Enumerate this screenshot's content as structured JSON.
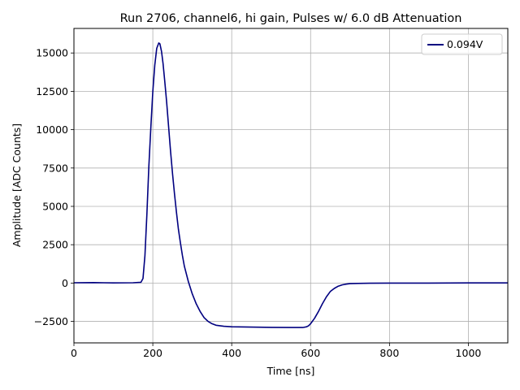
{
  "chart_data": {
    "type": "line",
    "title": "Run 2706, channel6, hi gain, Pulses w/ 6.0 dB Attenuation",
    "xlabel": "Time [ns]",
    "ylabel": "Amplitude [ADC Counts]",
    "xlim": [
      0,
      1100
    ],
    "ylim": [
      -3900,
      16600
    ],
    "xticks": [
      0,
      200,
      400,
      600,
      800,
      1000
    ],
    "yticks": [
      -2500,
      0,
      2500,
      5000,
      7500,
      10000,
      12500,
      15000
    ],
    "xtick_labels": [
      "0",
      "200",
      "400",
      "600",
      "800",
      "1000"
    ],
    "ytick_labels": [
      "−2500",
      "0",
      "2500",
      "5000",
      "7500",
      "10000",
      "12500",
      "15000"
    ],
    "grid": true,
    "legend": {
      "placement": "top-right",
      "entries": [
        "0.094V"
      ]
    },
    "series": [
      {
        "name": "0.094V",
        "color": "#000080",
        "x": [
          0,
          50,
          100,
          150,
          170,
          175,
          180,
          185,
          190,
          195,
          200,
          205,
          210,
          215,
          218,
          222,
          226,
          230,
          235,
          240,
          245,
          250,
          255,
          260,
          265,
          270,
          275,
          280,
          290,
          300,
          310,
          320,
          330,
          340,
          350,
          360,
          380,
          400,
          450,
          500,
          550,
          580,
          590,
          595,
          600,
          610,
          620,
          630,
          640,
          650,
          660,
          670,
          680,
          690,
          700,
          720,
          750,
          800,
          900,
          1000,
          1100
        ],
        "y": [
          20,
          30,
          10,
          20,
          50,
          300,
          1800,
          4500,
          7600,
          10200,
          12500,
          14200,
          15300,
          15650,
          15600,
          15100,
          14300,
          13200,
          11800,
          10200,
          8600,
          7100,
          5800,
          4600,
          3500,
          2600,
          1800,
          1100,
          100,
          -700,
          -1350,
          -1850,
          -2250,
          -2500,
          -2650,
          -2750,
          -2820,
          -2850,
          -2870,
          -2890,
          -2900,
          -2900,
          -2850,
          -2780,
          -2650,
          -2300,
          -1850,
          -1350,
          -900,
          -550,
          -350,
          -200,
          -120,
          -70,
          -40,
          -20,
          -10,
          0,
          0,
          10,
          10
        ]
      }
    ]
  }
}
